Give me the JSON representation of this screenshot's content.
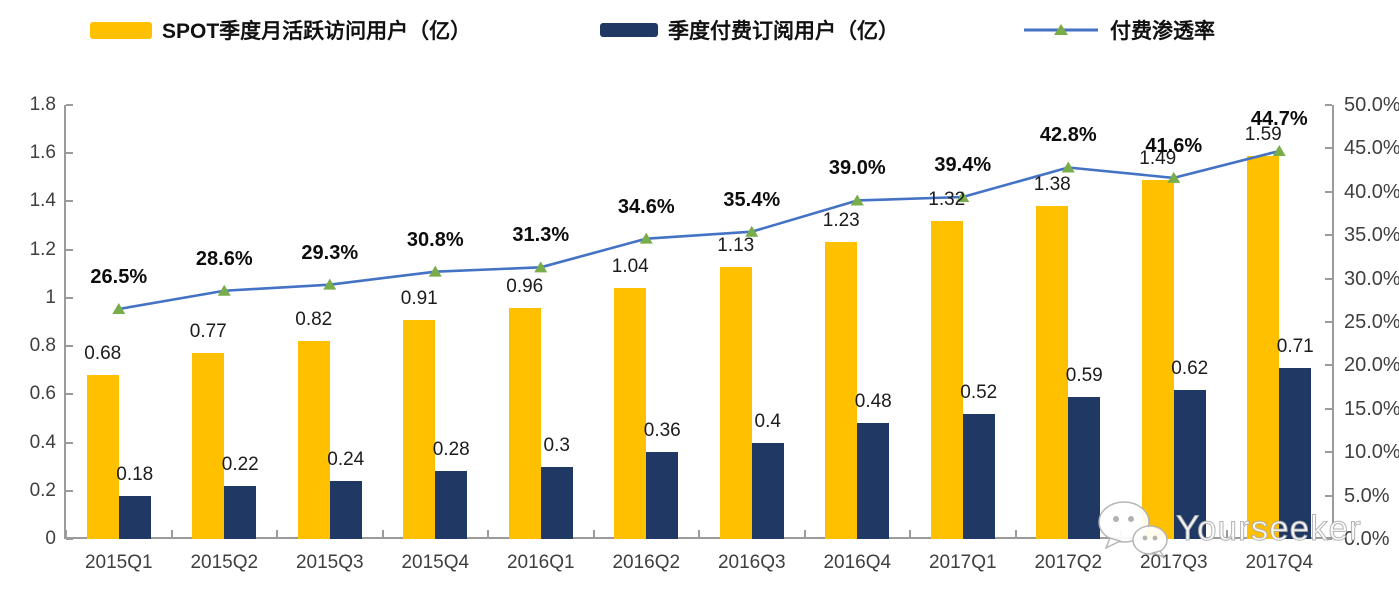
{
  "colors": {
    "mau_bar": "#FFC000",
    "subs_bar": "#1F3864",
    "penetration_line": "#4472C4",
    "penetration_marker": "#79AD4C",
    "axis": "#9B9B9B",
    "axis_text": "#3F3F3F",
    "label_text": "#1A1A1A"
  },
  "chart_data": {
    "type": "combo-bar-line",
    "title": "",
    "categories": [
      "2015Q1",
      "2015Q2",
      "2015Q3",
      "2015Q4",
      "2016Q1",
      "2016Q2",
      "2016Q3",
      "2016Q4",
      "2017Q1",
      "2017Q2",
      "2017Q3",
      "2017Q4"
    ],
    "series": [
      {
        "name": "SPOT季度月活跃访问用户（亿）",
        "chart": "bar",
        "axis": "left",
        "values": [
          0.68,
          0.77,
          0.82,
          0.91,
          0.96,
          1.04,
          1.13,
          1.23,
          1.32,
          1.38,
          1.49,
          1.59
        ],
        "labels": [
          "0.68",
          "0.77",
          "0.82",
          "0.91",
          "0.96",
          "1.04",
          "1.13",
          "1.23",
          "1.32",
          "1.38",
          "1.49",
          "1.59"
        ]
      },
      {
        "name": "季度付费订阅用户（亿）",
        "chart": "bar",
        "axis": "left",
        "values": [
          0.18,
          0.22,
          0.24,
          0.28,
          0.3,
          0.36,
          0.4,
          0.48,
          0.52,
          0.59,
          0.62,
          0.71
        ],
        "labels": [
          "0.18",
          "0.22",
          "0.24",
          "0.28",
          "0.3",
          "0.36",
          "0.4",
          "0.48",
          "0.52",
          "0.59",
          "0.62",
          "0.71"
        ]
      },
      {
        "name": "付费渗透率",
        "chart": "line",
        "axis": "right",
        "values": [
          26.5,
          28.6,
          29.3,
          30.8,
          31.3,
          34.6,
          35.4,
          39.0,
          39.4,
          42.8,
          41.6,
          44.7
        ],
        "labels": [
          "26.5%",
          "28.6%",
          "29.3%",
          "30.8%",
          "31.3%",
          "34.6%",
          "35.4%",
          "39.0%",
          "39.4%",
          "42.8%",
          "41.6%",
          "44.7%"
        ]
      }
    ],
    "left_axis": {
      "min": 0,
      "max": 1.8,
      "tick_labels": [
        "0",
        "0.2",
        "0.4",
        "0.6",
        "0.8",
        "1",
        "1.2",
        "1.4",
        "1.6",
        "1.8"
      ]
    },
    "right_axis": {
      "min": 0,
      "max": 50,
      "tick_labels": [
        "0.0%",
        "5.0%",
        "10.0%",
        "15.0%",
        "20.0%",
        "25.0%",
        "30.0%",
        "35.0%",
        "40.0%",
        "45.0%",
        "50.0%"
      ]
    },
    "grid": false,
    "legend_position": "top"
  },
  "watermark": {
    "text": "Yourseeker",
    "icon": "wechat-icon"
  }
}
